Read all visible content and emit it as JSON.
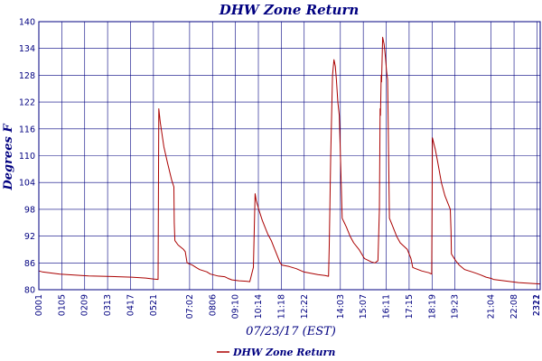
{
  "colors": {
    "series": "#aa0000",
    "text": "#000080",
    "grid": "#000080",
    "background": "#ffffff"
  },
  "chart_data": {
    "type": "line",
    "title": "DHW Zone Return",
    "xlabel": "07/23/17 (EST)",
    "ylabel": "Degrees F",
    "ylim": [
      80,
      140
    ],
    "yticks": [
      80,
      86,
      92,
      98,
      104,
      110,
      116,
      122,
      128,
      134,
      140
    ],
    "xlim": [
      1,
      1401
    ],
    "grid": true,
    "legend_position": "bottom-center",
    "xtick_labels": [
      {
        "value": 1,
        "label": "0001"
      },
      {
        "value": 65,
        "label": "0105"
      },
      {
        "value": 129,
        "label": "0209"
      },
      {
        "value": 193,
        "label": "0313"
      },
      {
        "value": 257,
        "label": "0417"
      },
      {
        "value": 321,
        "label": "0521"
      },
      {
        "value": 422,
        "label": "07:02"
      },
      {
        "value": 486,
        "label": "0806"
      },
      {
        "value": 550,
        "label": "09:10"
      },
      {
        "value": 614,
        "label": "10:14"
      },
      {
        "value": 678,
        "label": "11:18"
      },
      {
        "value": 742,
        "label": "12:22"
      },
      {
        "value": 843,
        "label": "14:03"
      },
      {
        "value": 907,
        "label": "15:07"
      },
      {
        "value": 971,
        "label": "16:11"
      },
      {
        "value": 1035,
        "label": "17:15"
      },
      {
        "value": 1099,
        "label": "18:19"
      },
      {
        "value": 1163,
        "label": "19:23"
      },
      {
        "value": 1264,
        "label": "21:04"
      },
      {
        "value": 1328,
        "label": "22:08"
      },
      {
        "value": 1392,
        "label": "2312"
      },
      {
        "value": 1401,
        "label": "2321"
      }
    ],
    "series": [
      {
        "name": "DHW Zone Return",
        "x": [
          1,
          10,
          30,
          60,
          100,
          140,
          180,
          220,
          260,
          300,
          320,
          334,
          336,
          340,
          350,
          360,
          372,
          378,
          379,
          381,
          390,
          405,
          410,
          415,
          430,
          440,
          450,
          470,
          480,
          490,
          500,
          520,
          530,
          540,
          550,
          560,
          580,
          590,
          600,
          605,
          608,
          615,
          625,
          640,
          650,
          660,
          670,
          675,
          680,
          700,
          720,
          740,
          760,
          780,
          800,
          810,
          812,
          816,
          821,
          825,
          829,
          832,
          836,
          840,
          848,
          860,
          870,
          880,
          895,
          910,
          930,
          940,
          948,
          952,
          954,
          955,
          957,
          958,
          961,
          965,
          969,
          972,
          975,
          980,
          990,
          1000,
          1010,
          1030,
          1040,
          1045,
          1050,
          1060,
          1070,
          1080,
          1090,
          1098,
          1100,
          1108,
          1115,
          1125,
          1135,
          1150,
          1152,
          1153,
          1165,
          1175,
          1190,
          1210,
          1225,
          1235,
          1250,
          1265,
          1270,
          1300,
          1320,
          1340,
          1360,
          1380,
          1401
        ],
        "values": [
          84.2,
          84.0,
          83.8,
          83.5,
          83.3,
          83.1,
          83.0,
          82.9,
          82.8,
          82.6,
          82.4,
          82.3,
          120.5,
          117.5,
          112.0,
          108.5,
          104.5,
          103.0,
          95.0,
          91.0,
          90.0,
          89.0,
          88.5,
          86.0,
          85.5,
          85.0,
          84.5,
          84.0,
          83.5,
          83.3,
          83.1,
          82.9,
          82.5,
          82.2,
          82.1,
          82.0,
          81.9,
          81.8,
          85.0,
          101.5,
          100.0,
          98.0,
          95.5,
          92.5,
          91.0,
          89.0,
          87.0,
          86.0,
          85.5,
          85.2,
          84.7,
          84.0,
          83.7,
          83.4,
          83.2,
          83.0,
          90.0,
          110.0,
          128.0,
          131.5,
          130.0,
          127.0,
          122.0,
          119.0,
          96.0,
          94.0,
          92.0,
          90.5,
          89.0,
          87.0,
          86.2,
          86.0,
          86.5,
          98.0,
          120.5,
          119.0,
          128.0,
          126.5,
          136.5,
          135.0,
          132.0,
          129.0,
          127.0,
          96.0,
          94.0,
          92.0,
          90.5,
          89.0,
          87.0,
          85.0,
          84.8,
          84.5,
          84.2,
          84.0,
          83.8,
          83.5,
          114.0,
          111.5,
          108.5,
          104.0,
          101.0,
          98.0,
          93.0,
          88.0,
          86.5,
          85.5,
          84.5,
          84.0,
          83.6,
          83.3,
          82.8,
          82.5,
          82.3,
          82.0,
          81.8,
          81.6,
          81.5,
          81.4,
          81.3
        ]
      }
    ]
  }
}
